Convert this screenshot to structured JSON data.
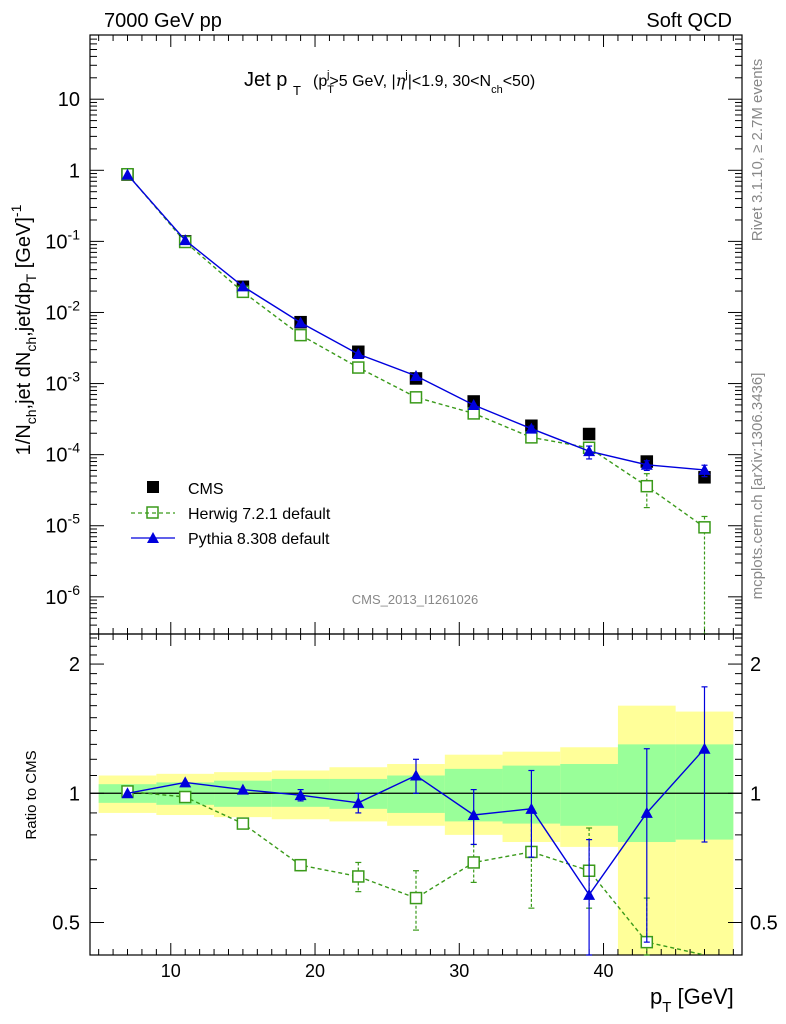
{
  "header": {
    "left": "7000 GeV pp",
    "right": "Soft QCD"
  },
  "side_text": {
    "rivet": "Rivet 3.1.10, ≥ 2.7M events",
    "mcplots": "mcplots.cern.ch [arXiv:1306.3436]"
  },
  "watermark": "CMS_2013_I1261026",
  "colors": {
    "cms": "#000000",
    "herwig": "#3a9a1a",
    "pythia": "#0000dd",
    "band_yellow": "#ffff99",
    "band_green": "#99ff99"
  },
  "chart_data": [
    {
      "type": "scatter",
      "panel": "main",
      "title": "Jet p_T (p_T^j>5 GeV, |η^j|<1.9, 30<N_ch<50)",
      "xlabel": "p_T [GeV]",
      "ylabel": "1/N_ch,jet dN_ch,jet/dp_T [GeV]^-1",
      "yscale": "log",
      "xlim": [
        4.4,
        49.6
      ],
      "ylim": [
        3e-07,
        80
      ],
      "y_ticks": [
        "10",
        "1",
        "10^-1",
        "10^-2",
        "10^-3",
        "10^-4",
        "10^-5",
        "10^-6"
      ],
      "legend_position": "bottom-left",
      "x": [
        7,
        11,
        15,
        19,
        23,
        27,
        31,
        35,
        39,
        43,
        47
      ],
      "series": [
        {
          "name": "CMS",
          "style": "data",
          "values": [
            0.87,
            0.1,
            0.023,
            0.0073,
            0.0028,
            0.00118,
            0.00056,
            0.000255,
            0.000195,
            8e-05,
            4.8e-05
          ]
        },
        {
          "name": "Herwig 7.2.1 default",
          "style": "herwig",
          "values": [
            0.88,
            0.098,
            0.0195,
            0.0048,
            0.00168,
            0.00064,
            0.00038,
            0.000175,
            0.000125,
            3.6e-05,
            9.5e-06
          ],
          "err_lo": [
            0,
            0,
            0,
            0,
            0,
            0,
            0,
            2e-05,
            2e-05,
            1.8e-05,
            9.2e-06
          ],
          "err_hi": [
            0,
            0,
            0,
            0,
            0,
            0,
            0,
            2e-05,
            2e-05,
            1.8e-05,
            4e-06
          ]
        },
        {
          "name": "Pythia 8.308 default",
          "style": "pythia",
          "values": [
            0.87,
            0.104,
            0.0233,
            0.0072,
            0.0026,
            0.00128,
            0.0005,
            0.000232,
            0.000112,
            7.2e-05,
            6.1e-05
          ],
          "err_lo": [
            0,
            0,
            0,
            0,
            0,
            0,
            0,
            2e-05,
            2.5e-05,
            1.2e-05,
            1.2e-05
          ],
          "err_hi": [
            0,
            0,
            0,
            0,
            0,
            0,
            0,
            2e-05,
            2e-05,
            1e-05,
            1e-05
          ]
        }
      ]
    },
    {
      "type": "line",
      "panel": "ratio",
      "ylabel": "Ratio to CMS",
      "xlabel": "p_T [GeV]",
      "yscale": "log",
      "xlim": [
        4.4,
        49.6
      ],
      "ylim": [
        0.42,
        2.35
      ],
      "x_ticks": [
        "10",
        "20",
        "30",
        "40"
      ],
      "y_ticks": [
        "0.5",
        "1",
        "2"
      ],
      "x": [
        7,
        11,
        15,
        19,
        23,
        27,
        31,
        35,
        39,
        43,
        47
      ],
      "bins": [
        [
          5,
          9
        ],
        [
          9,
          13
        ],
        [
          13,
          17
        ],
        [
          17,
          21
        ],
        [
          21,
          25
        ],
        [
          25,
          29
        ],
        [
          29,
          33
        ],
        [
          33,
          37
        ],
        [
          37,
          41
        ],
        [
          41,
          45
        ],
        [
          45,
          49
        ]
      ],
      "band_green": [
        [
          0.95,
          1.05
        ],
        [
          0.94,
          1.06
        ],
        [
          0.93,
          1.07
        ],
        [
          0.93,
          1.08
        ],
        [
          0.92,
          1.08
        ],
        [
          0.9,
          1.1
        ],
        [
          0.86,
          1.14
        ],
        [
          0.85,
          1.16
        ],
        [
          0.84,
          1.17
        ],
        [
          0.77,
          1.3
        ],
        [
          0.78,
          1.3
        ]
      ],
      "band_yellow": [
        [
          0.9,
          1.1
        ],
        [
          0.89,
          1.11
        ],
        [
          0.88,
          1.12
        ],
        [
          0.87,
          1.13
        ],
        [
          0.86,
          1.15
        ],
        [
          0.84,
          1.17
        ],
        [
          0.8,
          1.23
        ],
        [
          0.77,
          1.25
        ],
        [
          0.75,
          1.28
        ],
        [
          0.3,
          1.6
        ],
        [
          0.3,
          1.55
        ]
      ],
      "series": [
        {
          "name": "Herwig 7.2.1 default",
          "style": "herwig",
          "values": [
            1.01,
            0.98,
            0.85,
            0.68,
            0.64,
            0.57,
            0.69,
            0.73,
            0.66,
            0.45,
            0.2
          ],
          "err_lo": [
            0,
            0,
            0,
            0.02,
            0.05,
            0.09,
            0.07,
            0.19,
            0.12,
            0.12,
            0.1
          ],
          "err_hi": [
            0,
            0,
            0,
            0.02,
            0.05,
            0.09,
            0.07,
            0.19,
            0.17,
            0.12,
            0.1
          ]
        },
        {
          "name": "Pythia 8.308 default",
          "style": "pythia",
          "values": [
            1.0,
            1.06,
            1.02,
            0.99,
            0.95,
            1.1,
            0.89,
            0.92,
            0.58,
            0.9,
            1.27
          ],
          "err_lo": [
            0,
            0,
            0,
            0.03,
            0.05,
            0.1,
            0.13,
            0.21,
            0.26,
            0.45,
            0.5
          ],
          "err_hi": [
            0,
            0,
            0,
            0.03,
            0.05,
            0.1,
            0.13,
            0.21,
            0.2,
            0.37,
            0.5
          ]
        }
      ]
    }
  ]
}
